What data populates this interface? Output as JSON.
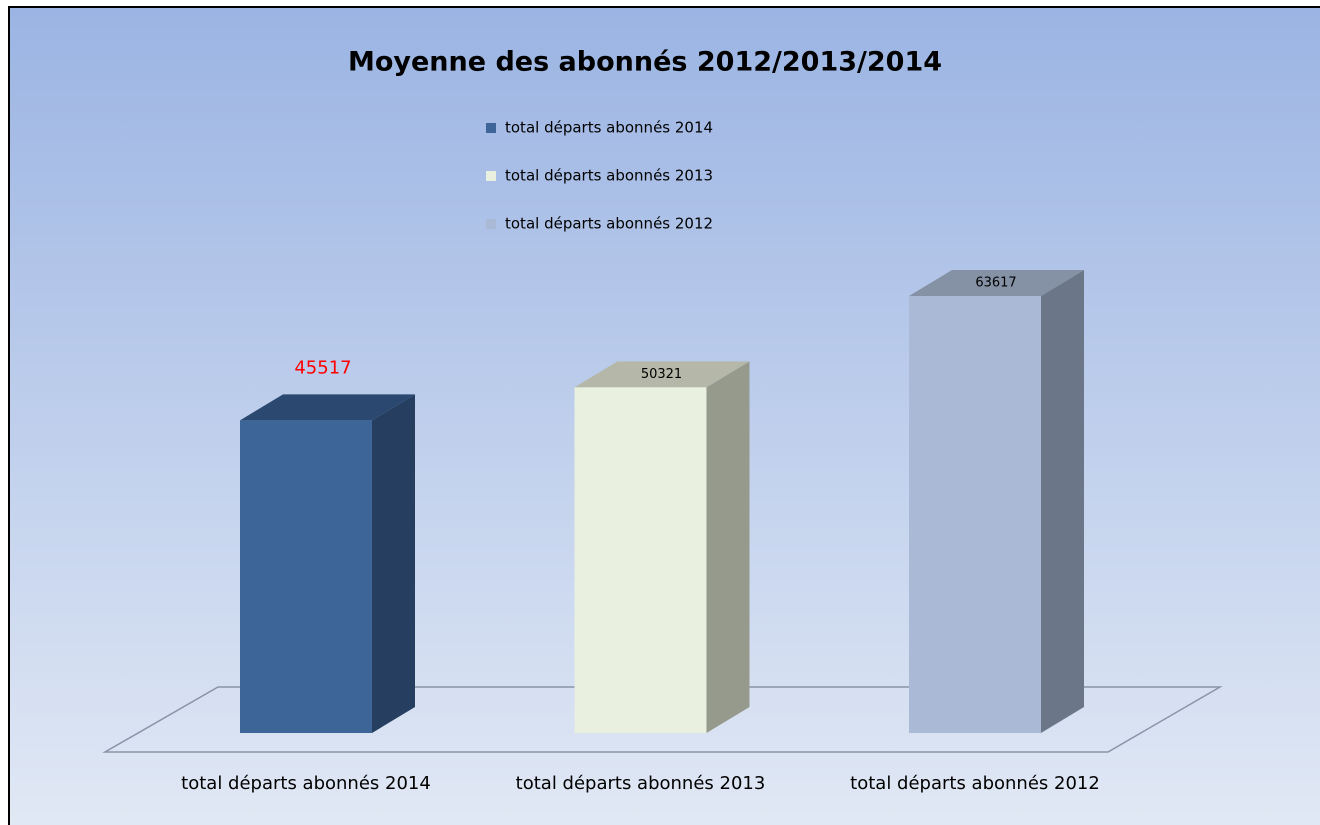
{
  "chart_data": {
    "type": "bar3d",
    "title": "Moyenne des abonnés 2012/2013/2014",
    "categories": [
      "total départs abonnés 2014",
      "total départs abonnés 2013",
      "total départs abonnés 2012"
    ],
    "values": [
      45517,
      50321,
      63617
    ],
    "colors": [
      "#3d6598",
      "#e9f0e0",
      "#aab9d6"
    ],
    "side_colors": [
      "#263f60",
      "#959a8c",
      "#6b7789"
    ],
    "top_colors": [
      "#2a4870",
      "#b5b8a8",
      "#8591a5"
    ],
    "label_colors": [
      "#ff0000",
      "#000000",
      "#000000"
    ]
  }
}
